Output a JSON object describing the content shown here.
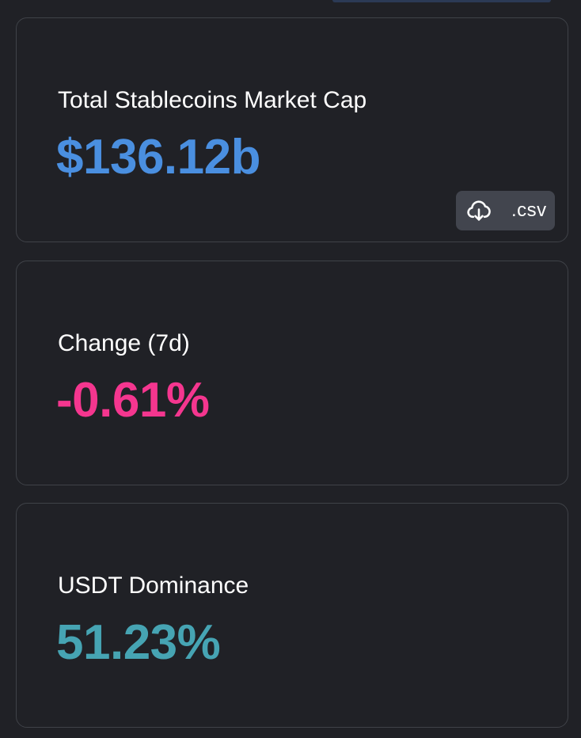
{
  "cards": {
    "market_cap": {
      "label": "Total Stablecoins Market Cap",
      "value": "$136.12b",
      "value_color": "#4a8fe0",
      "download_button": {
        "label": ".csv",
        "icon": "cloud-download-icon"
      }
    },
    "change_7d": {
      "label": "Change (7d)",
      "value": "-0.61%",
      "value_color": "#f5368f"
    },
    "usdt_dominance": {
      "label": "USDT Dominance",
      "value": "51.23%",
      "value_color": "#46a4b3"
    }
  }
}
